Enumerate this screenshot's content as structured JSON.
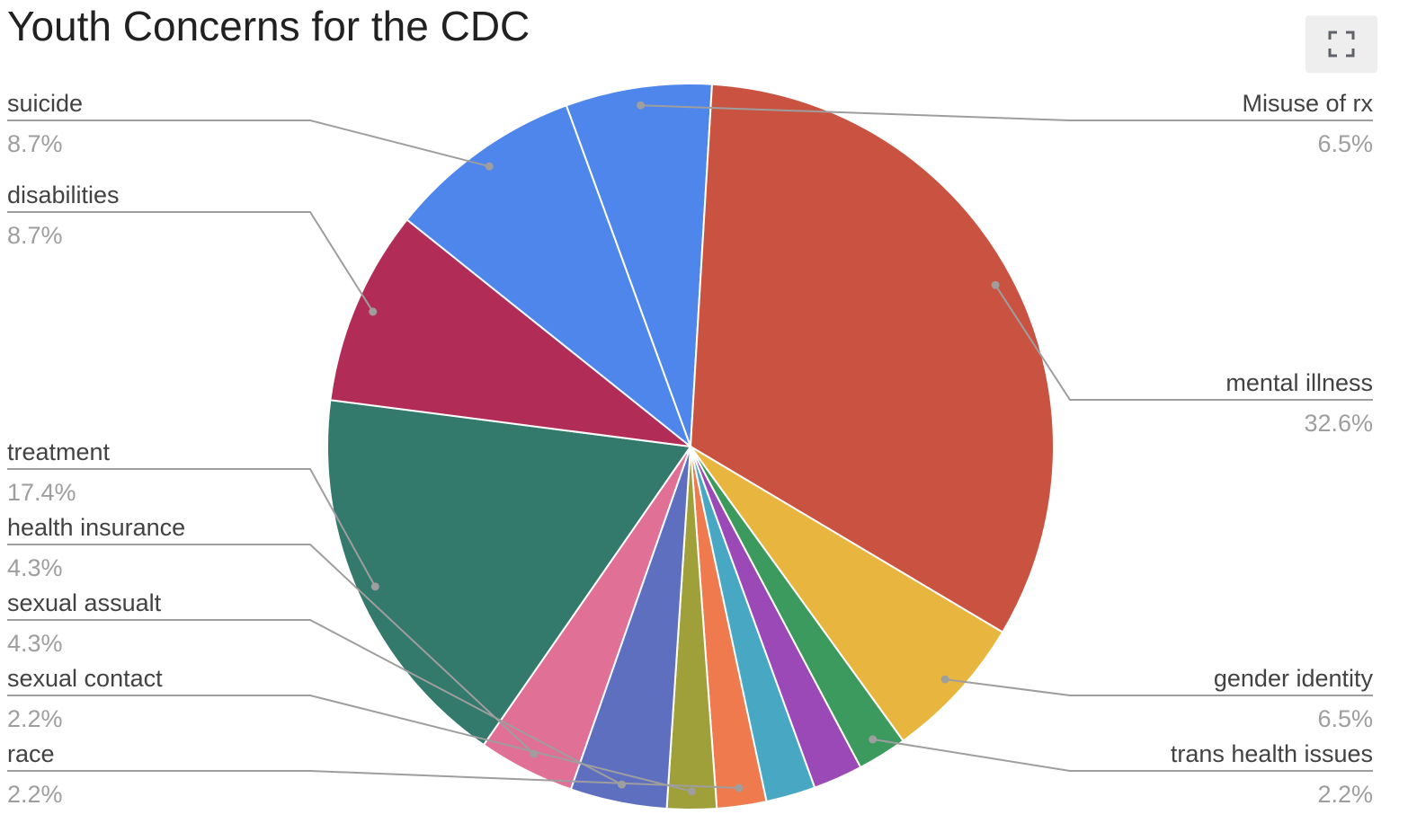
{
  "title": "Youth Concerns for the CDC",
  "fullscreen_icon": "fullscreen-icon",
  "chart_data": {
    "type": "pie",
    "title": "Youth Concerns for the CDC",
    "slices": [
      {
        "name": "Misuse of rx",
        "percent": 6.5,
        "label": "6.5%",
        "color": "#4F86EC"
      },
      {
        "name": "mental illness",
        "percent": 32.6,
        "label": "32.6%",
        "color": "#CA5240"
      },
      {
        "name": "gender identity",
        "percent": 6.5,
        "label": "6.5%",
        "color": "#E8B63E"
      },
      {
        "name": "trans health issues",
        "percent": 2.2,
        "label": "2.2%",
        "color": "#3D9A5E"
      },
      {
        "name": "",
        "percent": 2.2,
        "label": "",
        "color": "#9C49B8"
      },
      {
        "name": "",
        "percent": 2.2,
        "label": "",
        "color": "#48A8C4"
      },
      {
        "name": "race",
        "percent": 2.2,
        "label": "2.2%",
        "color": "#EF7A4E"
      },
      {
        "name": "sexual contact",
        "percent": 2.2,
        "label": "2.2%",
        "color": "#A0A03A"
      },
      {
        "name": "sexual assualt",
        "percent": 4.3,
        "label": "4.3%",
        "color": "#5E6FC0"
      },
      {
        "name": "health insurance",
        "percent": 4.3,
        "label": "4.3%",
        "color": "#E07096"
      },
      {
        "name": "treatment",
        "percent": 17.4,
        "label": "17.4%",
        "color": "#33796C"
      },
      {
        "name": "disabilities",
        "percent": 8.7,
        "label": "8.7%",
        "color": "#B12D58"
      },
      {
        "name": "suicide",
        "percent": 8.7,
        "label": "8.7%",
        "color": "#4F86EC"
      }
    ]
  }
}
